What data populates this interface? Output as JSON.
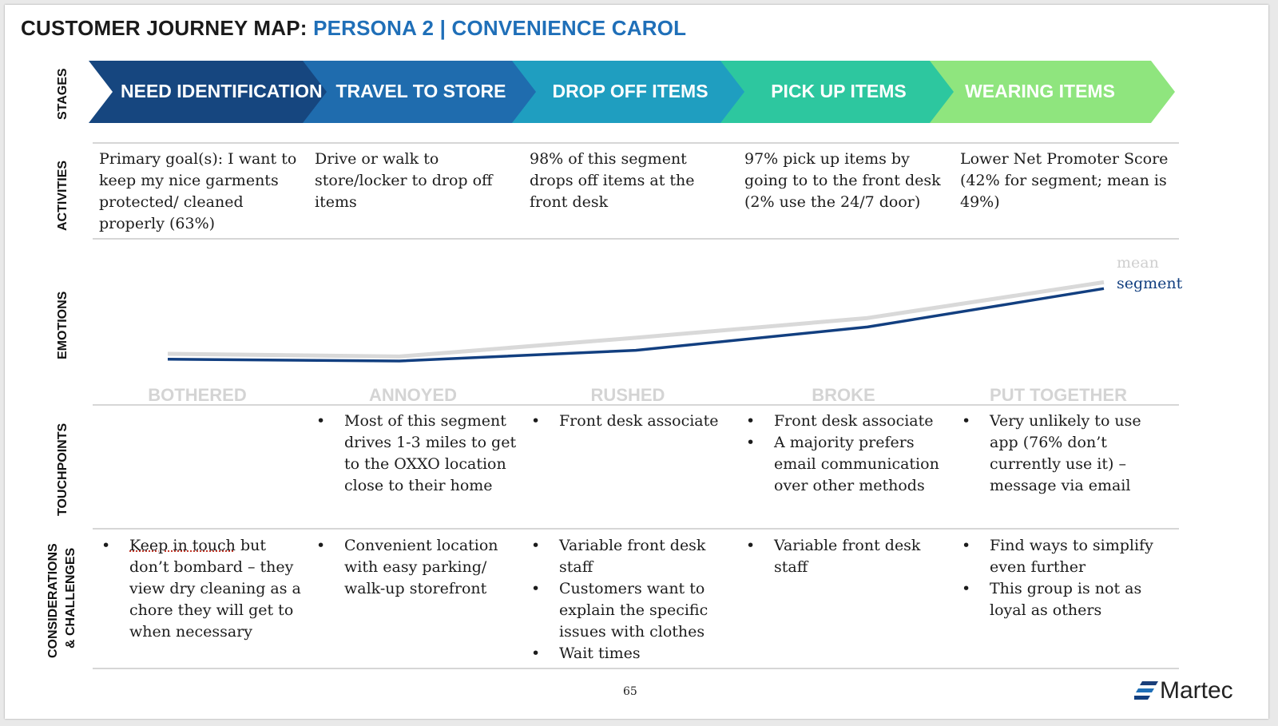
{
  "title": {
    "prefix": "CUSTOMER JOURNEY MAP:",
    "persona": "PERSONA 2 | CONVENIENCE CAROL"
  },
  "row_labels": {
    "stages": "STAGES",
    "activities": "ACTIVITIES",
    "emotions": "EMOTIONS",
    "touchpoints": "TOUCHPOINTS",
    "considerations_1": "CONSIDERATIONS",
    "considerations_2": "& CHALLENGES"
  },
  "colors": {
    "stage_1": "#16467f",
    "stage_2": "#1f6cae",
    "stage_3": "#1f9ec0",
    "stage_4": "#2dc79f",
    "stage_5": "#8fe57e",
    "mean_line": "#d9d9d9",
    "segment_line": "#123f80",
    "accent_blue": "#1f6fb8"
  },
  "stages": [
    "NEED IDENTIFICATION",
    "TRAVEL TO STORE",
    "DROP OFF ITEMS",
    "PICK UP ITEMS",
    "WEARING ITEMS"
  ],
  "activities": [
    "Primary goal(s): I want to keep my nice garments protected/ cleaned properly (63%)",
    "Drive or walk to store/locker to drop off items",
    "98% of this segment drops off items at the front desk",
    "97% pick up items by going to to the front desk (2% use the 24/7 door)",
    "Lower Net Promoter Score (42% for segment; mean is 49%)"
  ],
  "emotions": {
    "labels": [
      "BOTHERED",
      "ANNOYED",
      "RUSHED",
      "BROKE",
      "PUT TOGETHER"
    ],
    "legend_mean": "mean",
    "legend_segment": "segment"
  },
  "chart_data": {
    "type": "line",
    "categories": [
      "BOTHERED",
      "ANNOYED",
      "RUSHED",
      "BROKE",
      "PUT TOGETHER"
    ],
    "series": [
      {
        "name": "mean",
        "values": [
          0.08,
          0.05,
          0.26,
          0.48,
          0.88
        ]
      },
      {
        "name": "segment",
        "values": [
          0.02,
          0.0,
          0.12,
          0.38,
          0.81
        ]
      }
    ],
    "ylim": [
      0,
      1
    ],
    "grid": false,
    "legend_placement": "right"
  },
  "touchpoints": [
    [],
    [
      "Most of this segment drives 1-3 miles to get to the OXXO location close to their home"
    ],
    [
      "Front desk associate"
    ],
    [
      "Front desk associate",
      "A majority prefers email communication over other methods"
    ],
    [
      "Very unlikely to use app (76% don’t currently use it) – message via email"
    ]
  ],
  "considerations": {
    "col1_underlined": "Keep in touch",
    "col1_rest": " but don’t bombard – they view dry cleaning as a chore they will get to when necessary",
    "col2": [
      "Convenient location with easy parking/ walk-up storefront"
    ],
    "col3": [
      "Variable front desk staff",
      "Customers want to explain the specific issues with clothes",
      "Wait times"
    ],
    "col4": [
      "Variable front desk staff"
    ],
    "col5": [
      "Find ways to simplify even further",
      "This group is not as loyal as others"
    ]
  },
  "footer": {
    "page_number": "65",
    "logo_text": "Martec"
  }
}
